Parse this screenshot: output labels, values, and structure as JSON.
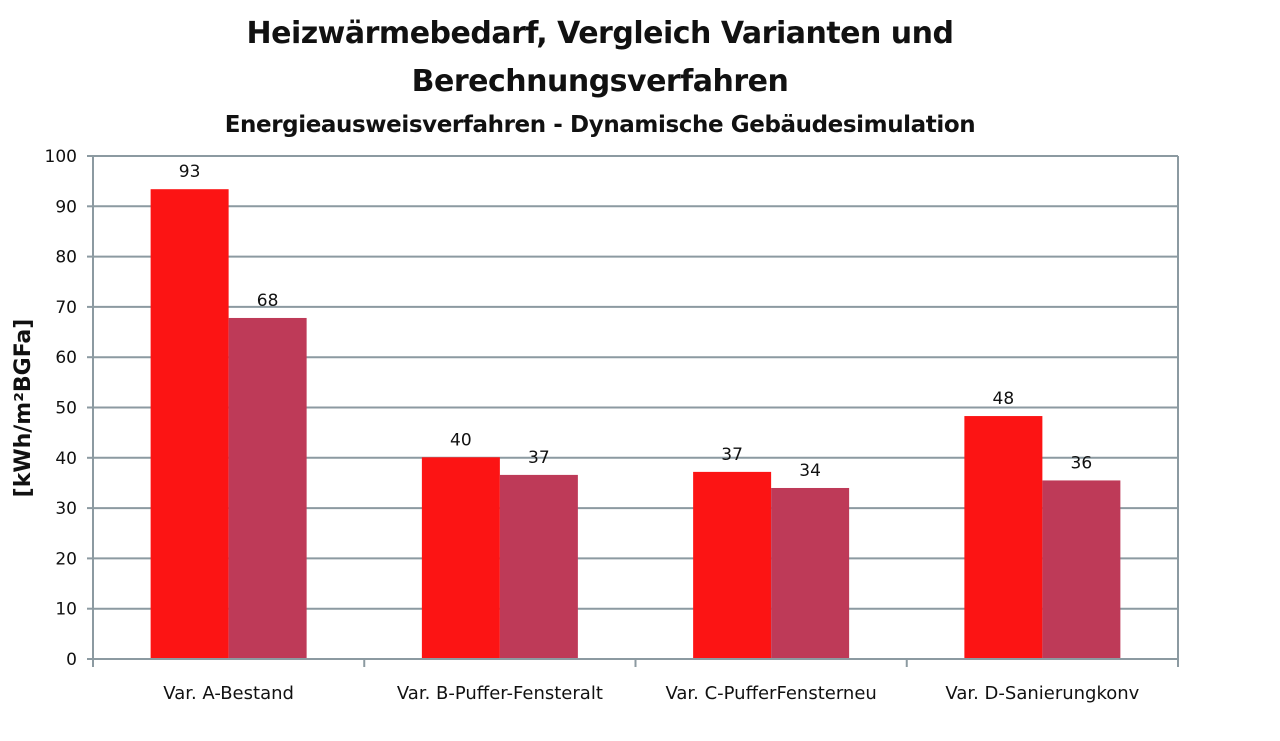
{
  "chart_data": {
    "type": "bar",
    "title": "Heizwärmebedarf, Vergleich Varianten und",
    "title_line2": "Berechnungsverfahren",
    "subtitle": "Energieausweisverfahren - Dynamische Gebäudesimulation",
    "xlabel": "",
    "ylabel": "[kWh/m²BGFa]",
    "ylim": [
      0,
      100
    ],
    "yticks": [
      "0",
      "10",
      "20",
      "30",
      "40",
      "50",
      "60",
      "70",
      "80",
      "90",
      "100"
    ],
    "grid": true,
    "categories": [
      "Var. A-Bestand",
      "Var. B-Puffer-Fensteralt",
      "Var. C-PufferFensterneu",
      "Var. D-Sanierungkonv"
    ],
    "series": [
      {
        "name": "Energieausweisverfahren",
        "color": "#fc1414",
        "values": [
          93.4,
          40.1,
          37.2,
          48.3
        ],
        "labels": [
          "93",
          "40",
          "37",
          "48"
        ]
      },
      {
        "name": "Dynamische Gebäudesimulation",
        "color": "#be3a58",
        "values": [
          67.8,
          36.6,
          34.0,
          35.5
        ],
        "labels": [
          "68",
          "37",
          "34",
          "36"
        ]
      }
    ]
  }
}
